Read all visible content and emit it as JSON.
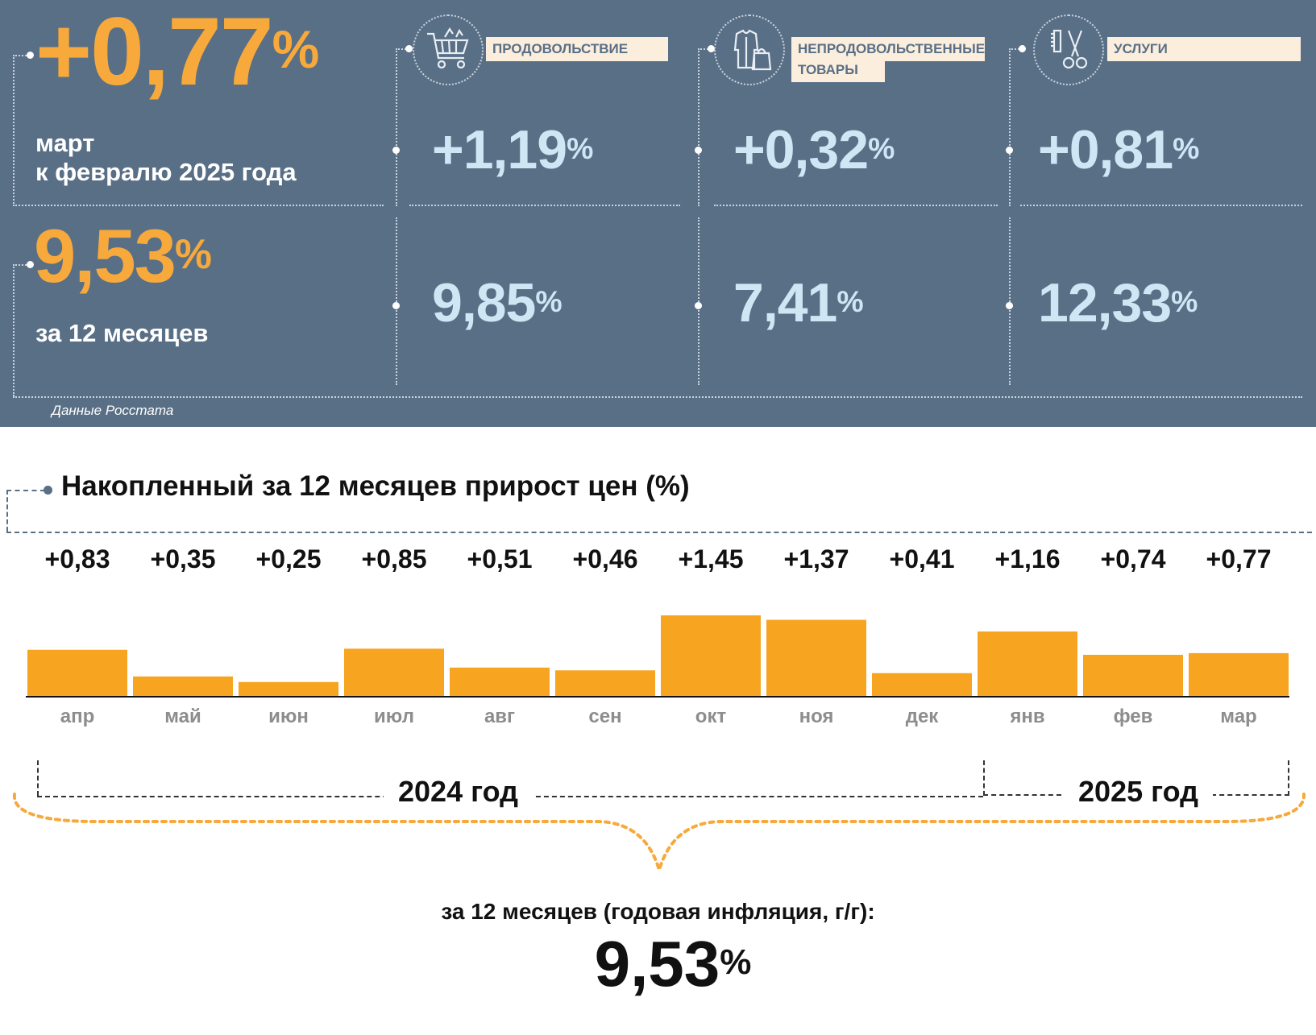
{
  "top": {
    "month_change": "+0,77",
    "percent_sign": "%",
    "month_desc_1": "март",
    "month_desc_2": "к февралю 2025 года",
    "annual_value": "9,53",
    "annual_desc": "за 12 месяцев",
    "source": "Данные Росстата",
    "categories": [
      {
        "label_1": "ПРОДОВОЛЬСТВИЕ",
        "label_2": "",
        "icon": "shopping-cart-icon",
        "month": "+1,19",
        "annual": "9,85"
      },
      {
        "label_1": "НЕПРОДОВОЛЬСТВЕННЫЕ",
        "label_2": "ТОВАРЫ",
        "icon": "clothes-bag-icon",
        "month": "+0,32",
        "annual": "7,41"
      },
      {
        "label_1": "УСЛУГИ",
        "label_2": "",
        "icon": "scissors-comb-icon",
        "month": "+0,81",
        "annual": "12,33"
      }
    ]
  },
  "chart_title": "Накопленный за 12 месяцев прирост цен (%)",
  "chart_data": {
    "type": "bar",
    "categories": [
      "апр",
      "май",
      "июн",
      "июл",
      "авг",
      "сен",
      "окт",
      "ноя",
      "дек",
      "янв",
      "фев",
      "мар"
    ],
    "values": [
      0.83,
      0.35,
      0.25,
      0.85,
      0.51,
      0.46,
      1.45,
      1.37,
      0.41,
      1.16,
      0.74,
      0.77
    ],
    "value_labels": [
      "+0,83",
      "+0,35",
      "+0,25",
      "+0,85",
      "+0,51",
      "+0,46",
      "+1,45",
      "+1,37",
      "+0,41",
      "+1,16",
      "+0,74",
      "+0,77"
    ],
    "title": "Накопленный за 12 месяцев прирост цен (%)",
    "xlabel": "",
    "ylabel": "",
    "year_groups": [
      {
        "label": "2024 год",
        "months": [
          "апр",
          "май",
          "июн",
          "июл",
          "авг",
          "сен",
          "окт",
          "ноя",
          "дек"
        ]
      },
      {
        "label": "2025 год",
        "months": [
          "янв",
          "фев",
          "мар"
        ]
      }
    ]
  },
  "colors": {
    "accent_orange": "#f7a93b",
    "bar": "#f7a521",
    "panel": "#596f86",
    "light_blue": "#cfe6f5"
  },
  "summary": {
    "caption": "за 12 месяцев (годовая инфляция, г/г):",
    "value": "9,53",
    "percent_sign": "%"
  }
}
